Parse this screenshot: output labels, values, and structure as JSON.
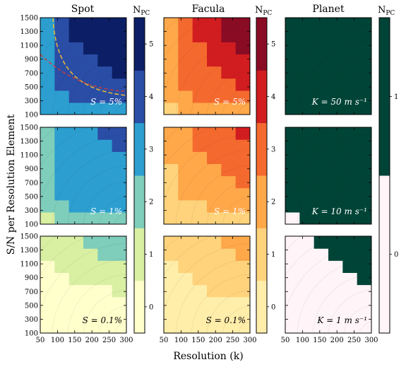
{
  "figure": {
    "ylabel": "S/N per Resolution Element",
    "xlabel": "Resolution (k)",
    "col_titles": [
      "Spot",
      "Facula",
      "Planet"
    ],
    "cbar_title": "N",
    "cbar_title_sub": "PC"
  },
  "colorbars": [
    {
      "name": "spot",
      "ticks": [
        "0",
        "1",
        "2",
        "3",
        "4",
        "5"
      ],
      "colors": [
        "#ffffcc",
        "#d9f0a3",
        "#7fcdbb",
        "#2c9fd0",
        "#2a4da6",
        "#0c1f66"
      ]
    },
    {
      "name": "facula",
      "ticks": [
        "0",
        "1",
        "2",
        "3",
        "4",
        "5"
      ],
      "colors": [
        "#ffedaa",
        "#fed37c",
        "#fea84a",
        "#f46a2e",
        "#d21d20",
        "#8a0c24"
      ]
    },
    {
      "name": "planet",
      "ticks": [
        "0",
        "1"
      ],
      "colors": [
        "#fff4f8",
        "#004437"
      ]
    }
  ],
  "colors": {
    "spot_boundary_line": "#e0b53a",
    "spot_threshold_line": "#c83c3c"
  },
  "chart_data": [
    {
      "type": "heatmap",
      "column": "Spot",
      "annotation": "S = 5%",
      "x": [
        50,
        100,
        150,
        200,
        250,
        300
      ],
      "y": [
        100,
        300,
        500,
        700,
        900,
        1100,
        1300,
        1500
      ],
      "z": [
        [
          3,
          3,
          3,
          3,
          3,
          3
        ],
        [
          3,
          3,
          4,
          4,
          4,
          4
        ],
        [
          3,
          4,
          4,
          4,
          4,
          4
        ],
        [
          3,
          4,
          4,
          4,
          4,
          5
        ],
        [
          3,
          4,
          4,
          4,
          5,
          5
        ],
        [
          3,
          4,
          4,
          5,
          5,
          5
        ],
        [
          3,
          4,
          5,
          5,
          5,
          5
        ],
        [
          3,
          4,
          5,
          5,
          5,
          5
        ]
      ]
    },
    {
      "type": "heatmap",
      "column": "Facula",
      "annotation": "S = 5%",
      "x": [
        50,
        100,
        150,
        200,
        250,
        300
      ],
      "y": [
        100,
        300,
        500,
        700,
        900,
        1100,
        1300,
        1500
      ],
      "z": [
        [
          1,
          2,
          2,
          2,
          2,
          2
        ],
        [
          2,
          2,
          3,
          3,
          3,
          3
        ],
        [
          2,
          3,
          3,
          3,
          3,
          4
        ],
        [
          2,
          3,
          3,
          3,
          4,
          4
        ],
        [
          2,
          3,
          3,
          4,
          4,
          4
        ],
        [
          2,
          3,
          3,
          4,
          4,
          5
        ],
        [
          2,
          3,
          4,
          4,
          5,
          5
        ],
        [
          2,
          3,
          4,
          4,
          5,
          5
        ]
      ]
    },
    {
      "type": "heatmap",
      "column": "Planet",
      "annotation": "K = 50 m s⁻¹",
      "x": [
        50,
        100,
        150,
        200,
        250,
        300
      ],
      "y": [
        100,
        300,
        500,
        700,
        900,
        1100,
        1300,
        1500
      ],
      "z": [
        [
          1,
          1,
          1,
          1,
          1,
          1
        ],
        [
          1,
          1,
          1,
          1,
          1,
          1
        ],
        [
          1,
          1,
          1,
          1,
          1,
          1
        ],
        [
          1,
          1,
          1,
          1,
          1,
          1
        ],
        [
          1,
          1,
          1,
          1,
          1,
          1
        ],
        [
          1,
          1,
          1,
          1,
          1,
          1
        ],
        [
          1,
          1,
          1,
          1,
          1,
          1
        ],
        [
          1,
          1,
          1,
          1,
          1,
          1
        ]
      ]
    },
    {
      "type": "heatmap",
      "column": "Spot",
      "annotation": "S = 1%",
      "x": [
        50,
        100,
        150,
        200,
        250,
        300
      ],
      "y": [
        100,
        300,
        500,
        700,
        900,
        1100,
        1300,
        1500
      ],
      "z": [
        [
          1,
          2,
          2,
          2,
          2,
          2
        ],
        [
          2,
          2,
          3,
          3,
          3,
          3
        ],
        [
          2,
          3,
          3,
          3,
          3,
          3
        ],
        [
          2,
          3,
          3,
          3,
          3,
          3
        ],
        [
          2,
          3,
          3,
          3,
          3,
          3
        ],
        [
          2,
          3,
          3,
          3,
          3,
          3
        ],
        [
          2,
          3,
          3,
          3,
          3,
          4
        ],
        [
          2,
          3,
          3,
          3,
          4,
          4
        ]
      ]
    },
    {
      "type": "heatmap",
      "column": "Facula",
      "annotation": "S = 1%",
      "x": [
        50,
        100,
        150,
        200,
        250,
        300
      ],
      "y": [
        100,
        300,
        500,
        700,
        900,
        1100,
        1300,
        1500
      ],
      "z": [
        [
          1,
          1,
          1,
          1,
          1,
          1
        ],
        [
          1,
          1,
          1,
          2,
          2,
          2
        ],
        [
          1,
          2,
          2,
          2,
          2,
          2
        ],
        [
          1,
          2,
          2,
          2,
          2,
          3
        ],
        [
          1,
          2,
          2,
          2,
          3,
          3
        ],
        [
          2,
          2,
          2,
          3,
          3,
          3
        ],
        [
          2,
          2,
          3,
          3,
          3,
          3
        ],
        [
          2,
          2,
          3,
          3,
          3,
          4
        ]
      ]
    },
    {
      "type": "heatmap",
      "column": "Planet",
      "annotation": "K = 10 m s⁻¹",
      "x": [
        50,
        100,
        150,
        200,
        250,
        300
      ],
      "y": [
        100,
        300,
        500,
        700,
        900,
        1100,
        1300,
        1500
      ],
      "z": [
        [
          0,
          1,
          1,
          1,
          1,
          1
        ],
        [
          1,
          1,
          1,
          1,
          1,
          1
        ],
        [
          1,
          1,
          1,
          1,
          1,
          1
        ],
        [
          1,
          1,
          1,
          1,
          1,
          1
        ],
        [
          1,
          1,
          1,
          1,
          1,
          1
        ],
        [
          1,
          1,
          1,
          1,
          1,
          1
        ],
        [
          1,
          1,
          1,
          1,
          1,
          1
        ],
        [
          1,
          1,
          1,
          1,
          1,
          1
        ]
      ]
    },
    {
      "type": "heatmap",
      "column": "Spot",
      "annotation": "S = 0.1%",
      "x": [
        50,
        100,
        150,
        200,
        250,
        300
      ],
      "y": [
        100,
        300,
        500,
        700,
        900,
        1100,
        1300,
        1500
      ],
      "z": [
        [
          0,
          0,
          0,
          0,
          0,
          0
        ],
        [
          0,
          0,
          0,
          0,
          0,
          0
        ],
        [
          0,
          0,
          0,
          0,
          0,
          0
        ],
        [
          0,
          0,
          0,
          0,
          0,
          1
        ],
        [
          0,
          0,
          1,
          1,
          1,
          1
        ],
        [
          0,
          1,
          1,
          1,
          1,
          1
        ],
        [
          1,
          1,
          1,
          1,
          2,
          2
        ],
        [
          1,
          1,
          1,
          2,
          2,
          2
        ]
      ]
    },
    {
      "type": "heatmap",
      "column": "Facula",
      "annotation": "S = 0.1%",
      "x": [
        50,
        100,
        150,
        200,
        250,
        300
      ],
      "y": [
        100,
        300,
        500,
        700,
        900,
        1100,
        1300,
        1500
      ],
      "z": [
        [
          0,
          0,
          0,
          0,
          0,
          0
        ],
        [
          0,
          0,
          0,
          0,
          0,
          0
        ],
        [
          0,
          0,
          0,
          0,
          0,
          0
        ],
        [
          0,
          0,
          0,
          1,
          1,
          1
        ],
        [
          0,
          0,
          1,
          1,
          1,
          1
        ],
        [
          0,
          1,
          1,
          1,
          1,
          1
        ],
        [
          1,
          1,
          1,
          1,
          1,
          2
        ],
        [
          1,
          1,
          1,
          1,
          2,
          2
        ]
      ]
    },
    {
      "type": "heatmap",
      "column": "Planet",
      "annotation": "K = 1 m s⁻¹",
      "x": [
        50,
        100,
        150,
        200,
        250,
        300
      ],
      "y": [
        100,
        300,
        500,
        700,
        900,
        1100,
        1300,
        1500
      ],
      "z": [
        [
          0,
          0,
          0,
          0,
          0,
          0
        ],
        [
          0,
          0,
          0,
          0,
          0,
          0
        ],
        [
          0,
          0,
          0,
          0,
          0,
          0
        ],
        [
          0,
          0,
          0,
          0,
          0,
          0
        ],
        [
          0,
          0,
          0,
          0,
          0,
          1
        ],
        [
          0,
          0,
          0,
          0,
          1,
          1
        ],
        [
          0,
          0,
          0,
          1,
          1,
          1
        ],
        [
          0,
          0,
          1,
          1,
          1,
          1
        ]
      ]
    }
  ],
  "axes": {
    "xticks": [
      "50",
      "100",
      "150",
      "200",
      "250",
      "300"
    ],
    "yticks": [
      "100",
      "300",
      "500",
      "700",
      "900",
      "1100",
      "1300",
      "1500"
    ],
    "xlim": [
      50,
      300
    ],
    "ylim": [
      100,
      1500
    ]
  }
}
